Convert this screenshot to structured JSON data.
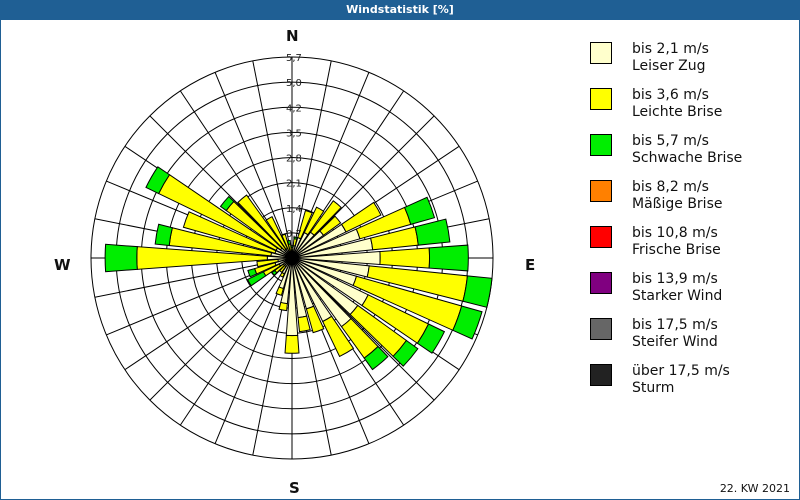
{
  "window": {
    "title": "Windstatistik [%]"
  },
  "compass": {
    "n": "N",
    "e": "E",
    "s": "S",
    "w": "W"
  },
  "footer": {
    "label": "22. KW 2021"
  },
  "legend": [
    {
      "range": "bis 2,1 m/s",
      "name": "Leiser Zug",
      "color": "#ffffcc"
    },
    {
      "range": "bis 3,6 m/s",
      "name": "Leichte Brise",
      "color": "#ffff00"
    },
    {
      "range": "bis 5,7 m/s",
      "name": "Schwache Brise",
      "color": "#00ee00"
    },
    {
      "range": "bis 8,2 m/s",
      "name": "Mäßige Brise",
      "color": "#ff8000"
    },
    {
      "range": "bis 10,8 m/s",
      "name": "Frische Brise",
      "color": "#ff0000"
    },
    {
      "range": "bis 13,9 m/s",
      "name": "Starker Wind",
      "color": "#800080"
    },
    {
      "range": "bis 17,5 m/s",
      "name": "Steifer Wind",
      "color": "#666666"
    },
    {
      "range": "über 17,5 m/s",
      "name": "Sturm",
      "color": "#222222"
    }
  ],
  "chart_data": {
    "type": "wind-rose",
    "title": "Windstatistik [%]",
    "subtitle": "22. KW 2021",
    "unit": "%",
    "ring_labels": [
      "0,7",
      "1,4",
      "2,1",
      "2,8",
      "3,5",
      "4,2",
      "5,0",
      "5,7"
    ],
    "rmax": 5.7,
    "sector_width_deg": 10,
    "series_names": [
      "Leiser Zug (bis 2,1 m/s)",
      "Leichte Brise (bis 3,6 m/s)",
      "Schwache Brise (bis 5,7 m/s)"
    ],
    "series_colors": [
      "#ffffcc",
      "#ffff00",
      "#00ee00"
    ],
    "directions": [
      0,
      10,
      20,
      30,
      40,
      50,
      60,
      70,
      80,
      90,
      100,
      110,
      120,
      130,
      140,
      150,
      160,
      170,
      180,
      190,
      200,
      210,
      220,
      230,
      240,
      250,
      260,
      270,
      280,
      290,
      300,
      310,
      320,
      330,
      340,
      350
    ],
    "cumulative": [
      [
        0.2,
        0.3,
        0.35
      ],
      [
        0.35,
        0.55,
        0.6
      ],
      [
        0.6,
        1.4,
        1.4
      ],
      [
        0.8,
        1.6,
        1.6
      ],
      [
        0.9,
        2.0,
        2.0
      ],
      [
        1.1,
        1.7,
        1.7
      ],
      [
        1.7,
        2.8,
        2.8
      ],
      [
        2.0,
        3.5,
        4.2
      ],
      [
        2.3,
        3.6,
        4.5
      ],
      [
        2.5,
        3.9,
        5.0
      ],
      [
        2.2,
        5.0,
        5.7
      ],
      [
        1.9,
        5.0,
        5.6
      ],
      [
        2.4,
        4.3,
        4.8
      ],
      [
        2.3,
        4.0,
        4.4
      ],
      [
        2.4,
        3.5,
        3.9
      ],
      [
        2.0,
        3.1,
        3.1
      ],
      [
        1.5,
        2.2,
        2.2
      ],
      [
        1.7,
        2.1,
        2.1
      ],
      [
        2.2,
        2.7,
        2.7
      ],
      [
        1.3,
        1.5,
        1.5
      ],
      [
        0.9,
        1.1,
        1.1
      ],
      [
        0.5,
        0.6,
        0.6
      ],
      [
        0.3,
        0.5,
        0.5
      ],
      [
        0.3,
        0.6,
        0.7
      ],
      [
        0.4,
        0.9,
        1.4
      ],
      [
        0.5,
        1.1,
        1.3
      ],
      [
        0.4,
        1.0,
        1.0
      ],
      [
        0.7,
        4.4,
        5.3
      ],
      [
        0.6,
        3.5,
        3.9
      ],
      [
        0.5,
        3.2,
        3.2
      ],
      [
        0.5,
        4.2,
        4.6
      ],
      [
        0.4,
        2.3,
        2.5
      ],
      [
        0.3,
        2.2,
        2.2
      ],
      [
        0.3,
        1.3,
        1.3
      ],
      [
        0.2,
        0.7,
        0.7
      ],
      [
        0.2,
        0.4,
        0.5
      ]
    ]
  }
}
